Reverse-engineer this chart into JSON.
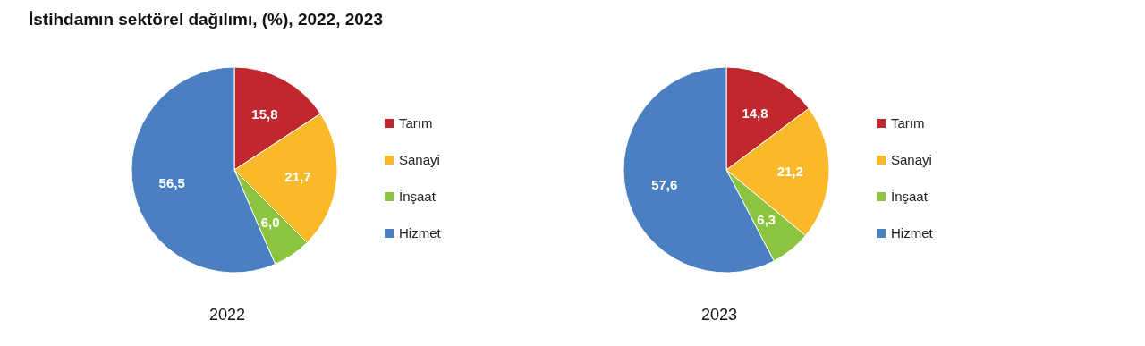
{
  "chart_data": [
    {
      "type": "pie",
      "title": "İstihdamın sektörel dağılımı, (%), 2022, 2023",
      "xlabel": "2022",
      "categories": [
        "Tarım",
        "Sanayi",
        "İnşaat",
        "Hizmet"
      ],
      "values": [
        15.8,
        21.7,
        6.0,
        56.5
      ],
      "colors": [
        "#c0282d",
        "#f9b92b",
        "#8cc43f",
        "#4a7fc1"
      ],
      "value_labels": [
        "15,8",
        "21,7",
        "6,0",
        "56,5"
      ],
      "legend": "right"
    },
    {
      "type": "pie",
      "xlabel": "2023",
      "categories": [
        "Tarım",
        "Sanayi",
        "İnşaat",
        "Hizmet"
      ],
      "values": [
        14.8,
        21.2,
        6.3,
        57.6
      ],
      "colors": [
        "#c0282d",
        "#f9b92b",
        "#8cc43f",
        "#4a7fc1"
      ],
      "value_labels": [
        "14,8",
        "21,2",
        "6,3",
        "57,6"
      ],
      "legend": "right"
    }
  ]
}
